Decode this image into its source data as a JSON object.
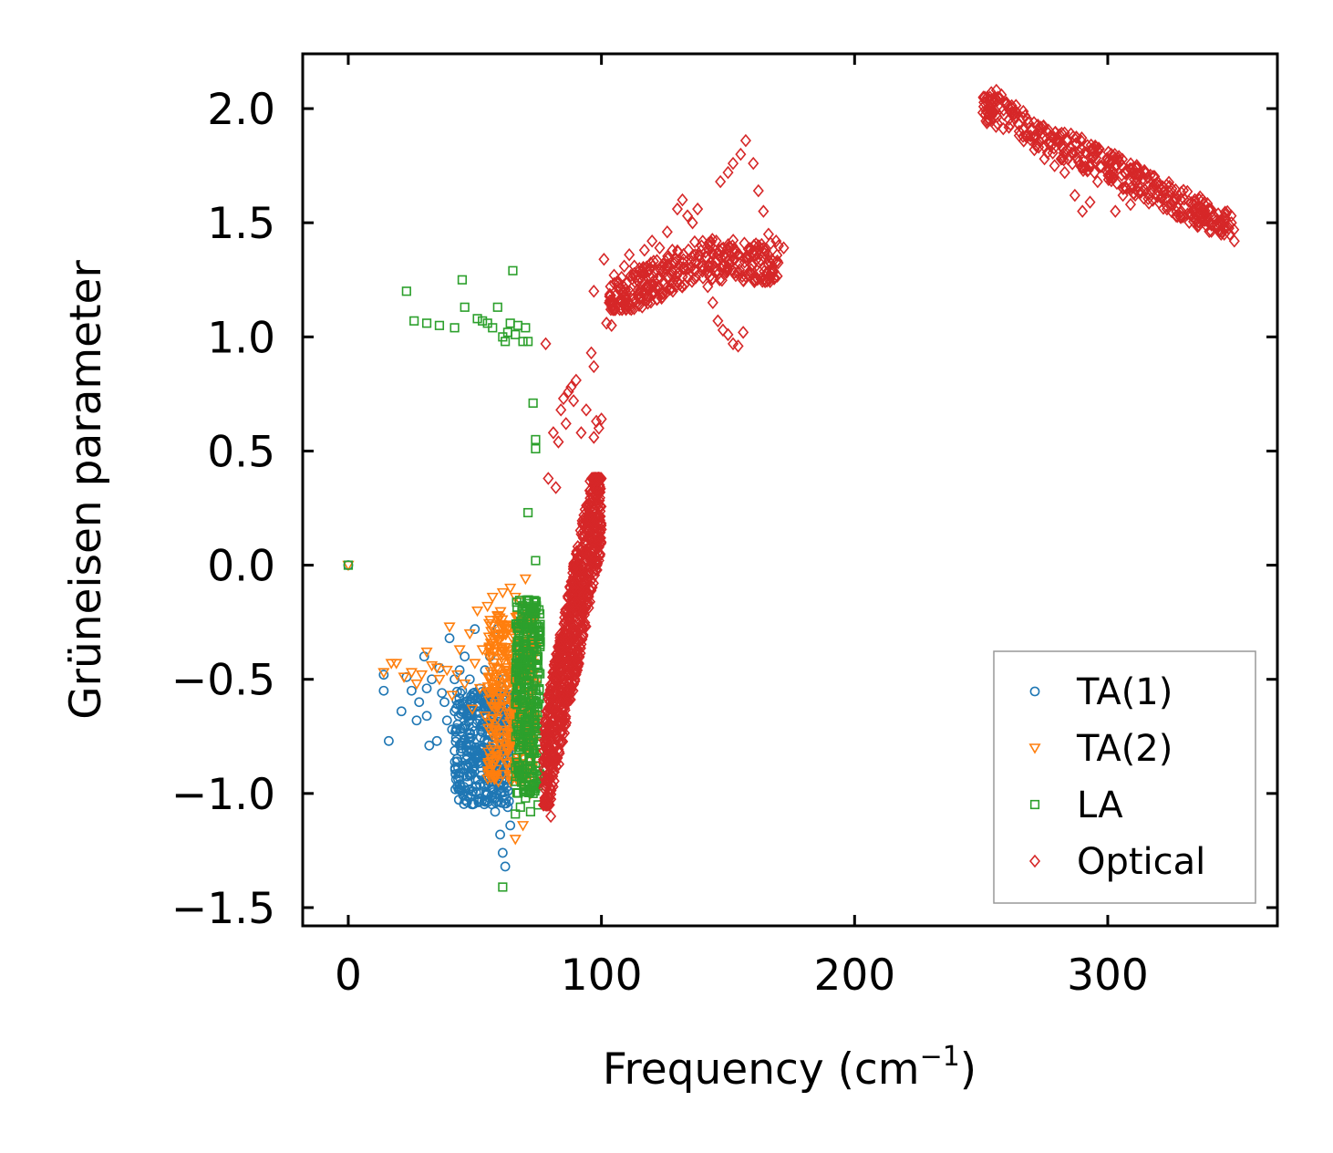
{
  "chart_data": {
    "type": "scatter",
    "title": "",
    "xlabel": "Frequency (cm",
    "xlabel_sup": "−1",
    "xlabel_close": ")",
    "ylabel": "Grüneisen parameter",
    "xlim": [
      -18,
      367
    ],
    "ylim": [
      -1.58,
      2.24
    ],
    "x_ticks": [
      0,
      100,
      200,
      300
    ],
    "x_tick_labels": [
      "0",
      "100",
      "200",
      "300"
    ],
    "y_ticks": [
      -1.5,
      -1.0,
      -0.5,
      0.0,
      0.5,
      1.0,
      1.5,
      2.0
    ],
    "y_tick_labels": [
      "−1.5",
      "−1.0",
      "−0.5",
      "0.0",
      "0.5",
      "1.0",
      "1.5",
      "2.0"
    ],
    "grid": false,
    "legend_position": "bottom-right",
    "series": [
      {
        "name": "TA(1)",
        "marker": "circle",
        "color": "#1f77b4",
        "points": [
          [
            0,
            0
          ],
          [
            14,
            -0.48
          ],
          [
            14,
            -0.55
          ],
          [
            16,
            -0.77
          ],
          [
            21,
            -0.64
          ],
          [
            23,
            -0.49
          ],
          [
            25,
            -0.55
          ],
          [
            27,
            -0.68
          ],
          [
            28,
            -0.6
          ],
          [
            30,
            -0.4
          ],
          [
            31,
            -0.54
          ],
          [
            31,
            -0.66
          ],
          [
            32,
            -0.79
          ],
          [
            33,
            -0.5
          ],
          [
            35,
            -0.77
          ],
          [
            36,
            -0.45
          ],
          [
            37,
            -0.56
          ],
          [
            38,
            -0.6
          ],
          [
            39,
            -0.68
          ],
          [
            40,
            -0.32
          ],
          [
            41,
            -0.72
          ],
          [
            42,
            -0.5
          ],
          [
            42,
            -0.64
          ],
          [
            43,
            -0.86
          ],
          [
            44,
            -0.46
          ],
          [
            45,
            -0.55
          ],
          [
            46,
            -0.4
          ],
          [
            47,
            -0.66
          ],
          [
            48,
            -0.5
          ],
          [
            48,
            -0.74
          ],
          [
            49,
            -0.58
          ],
          [
            50,
            -0.28
          ],
          [
            50,
            -0.84
          ],
          [
            51,
            -0.62
          ],
          [
            52,
            -0.54
          ],
          [
            52,
            -0.96
          ],
          [
            53,
            -0.7
          ],
          [
            54,
            -0.46
          ],
          [
            55,
            -0.78
          ],
          [
            55,
            -0.6
          ],
          [
            56,
            -0.88
          ],
          [
            56,
            -0.4
          ],
          [
            57,
            -0.66
          ],
          [
            57,
            -0.98
          ],
          [
            58,
            -0.56
          ],
          [
            58,
            -1.08
          ],
          [
            59,
            -0.28
          ],
          [
            59,
            -0.74
          ],
          [
            60,
            -0.82
          ],
          [
            60,
            -1.18
          ],
          [
            61,
            -0.5
          ],
          [
            61,
            -1.26
          ],
          [
            62,
            -0.94
          ],
          [
            62,
            -1.32
          ],
          [
            63,
            -1.06
          ],
          [
            63,
            -0.68
          ],
          [
            64,
            -1.14
          ],
          [
            64,
            -0.86
          ],
          [
            65,
            -0.58
          ]
        ],
        "clusters": [
          {
            "xmin": 42,
            "xmax": 64,
            "ymin": -1.05,
            "ymax": -0.55,
            "n": 380
          }
        ]
      },
      {
        "name": "TA(2)",
        "marker": "triangle-down",
        "color": "#ff7f0e",
        "points": [
          [
            0,
            0
          ],
          [
            14,
            -0.47
          ],
          [
            17,
            -0.43
          ],
          [
            19,
            -0.43
          ],
          [
            22,
            -0.49
          ],
          [
            25,
            -0.47
          ],
          [
            27,
            -0.52
          ],
          [
            29,
            -0.48
          ],
          [
            31,
            -0.38
          ],
          [
            33,
            -0.44
          ],
          [
            35,
            -0.45
          ],
          [
            36,
            -0.5
          ],
          [
            39,
            -0.46
          ],
          [
            40,
            -0.27
          ],
          [
            41,
            -0.57
          ],
          [
            43,
            -0.48
          ],
          [
            44,
            -0.37
          ],
          [
            46,
            -0.52
          ],
          [
            48,
            -0.3
          ],
          [
            49,
            -0.63
          ],
          [
            50,
            -0.43
          ],
          [
            51,
            -0.2
          ],
          [
            52,
            -0.54
          ],
          [
            53,
            -0.37
          ],
          [
            54,
            -0.66
          ],
          [
            55,
            -0.18
          ],
          [
            56,
            -0.49
          ],
          [
            57,
            -0.14
          ],
          [
            58,
            -0.31
          ],
          [
            58,
            -0.72
          ],
          [
            59,
            -0.24
          ],
          [
            60,
            -0.58
          ],
          [
            61,
            -0.12
          ],
          [
            62,
            -0.36
          ],
          [
            63,
            -0.82
          ],
          [
            64,
            -0.1
          ],
          [
            65,
            -0.6
          ],
          [
            66,
            -0.14
          ],
          [
            66,
            -1.2
          ],
          [
            67,
            -0.92
          ],
          [
            68,
            -0.16
          ],
          [
            69,
            -1.14
          ],
          [
            70,
            -0.06
          ],
          [
            71,
            -0.4
          ],
          [
            72,
            -1.0
          ],
          [
            73,
            -0.22
          ],
          [
            74,
            -0.74
          ]
        ],
        "clusters": [
          {
            "xmin": 55,
            "xmax": 74,
            "ymin": -0.95,
            "ymax": -0.2,
            "n": 380
          }
        ]
      },
      {
        "name": "LA",
        "marker": "square",
        "color": "#2ca02c",
        "points": [
          [
            0,
            0
          ],
          [
            23,
            1.2
          ],
          [
            26,
            1.07
          ],
          [
            31,
            1.06
          ],
          [
            36,
            1.05
          ],
          [
            42,
            1.04
          ],
          [
            45,
            1.25
          ],
          [
            46,
            1.13
          ],
          [
            51,
            1.08
          ],
          [
            53,
            1.07
          ],
          [
            55,
            1.06
          ],
          [
            57,
            1.04
          ],
          [
            59,
            1.13
          ],
          [
            61,
            1.0
          ],
          [
            61,
            -1.41
          ],
          [
            62,
            0.98
          ],
          [
            63,
            1.02
          ],
          [
            64,
            1.06
          ],
          [
            65,
            1.29
          ],
          [
            66,
            1.01
          ],
          [
            67,
            1.05
          ],
          [
            69,
            0.98
          ],
          [
            70,
            1.04
          ],
          [
            71,
            0.23
          ],
          [
            71,
            0.98
          ],
          [
            73,
            0.71
          ],
          [
            74,
            0.55
          ],
          [
            74,
            0.51
          ],
          [
            74,
            0.02
          ],
          [
            75,
            -0.27
          ],
          [
            75,
            -1.05
          ],
          [
            73,
            -1.0
          ],
          [
            72,
            -1.08
          ],
          [
            70,
            -1.02
          ],
          [
            68,
            -1.06
          ],
          [
            66,
            -1.09
          ]
        ],
        "clusters": [
          {
            "xmin": 66,
            "xmax": 76,
            "ymin": -1.0,
            "ymax": -0.15,
            "n": 320
          }
        ]
      },
      {
        "name": "Optical",
        "marker": "diamond",
        "color": "#d62728",
        "points": [
          [
            78,
            0.97
          ],
          [
            79,
            0.38
          ],
          [
            80,
            -1.1
          ],
          [
            81,
            0.58
          ],
          [
            82,
            0.34
          ],
          [
            83,
            0.54
          ],
          [
            84,
            0.68
          ],
          [
            85,
            0.73
          ],
          [
            86,
            0.62
          ],
          [
            87,
            0.76
          ],
          [
            88,
            0.78
          ],
          [
            89,
            0.72
          ],
          [
            90,
            0.81
          ],
          [
            90,
            -0.18
          ],
          [
            92,
            0.58
          ],
          [
            94,
            0.68
          ],
          [
            96,
            0.93
          ],
          [
            97,
            0.87
          ],
          [
            98,
            0.63
          ],
          [
            99,
            0.6
          ],
          [
            100,
            0.64
          ],
          [
            97,
            0.56
          ],
          [
            97,
            1.2
          ],
          [
            101,
            1.34
          ],
          [
            102,
            1.06
          ],
          [
            104,
            1.05
          ],
          [
            105,
            1.27
          ],
          [
            108,
            1.15
          ],
          [
            109,
            1.31
          ],
          [
            110,
            1.19
          ],
          [
            111,
            1.36
          ],
          [
            113,
            1.31
          ],
          [
            115,
            1.3
          ],
          [
            117,
            1.38
          ],
          [
            120,
            1.42
          ],
          [
            123,
            1.39
          ],
          [
            126,
            1.46
          ],
          [
            128,
            1.38
          ],
          [
            130,
            1.56
          ],
          [
            132,
            1.6
          ],
          [
            134,
            1.53
          ],
          [
            136,
            1.5
          ],
          [
            138,
            1.56
          ],
          [
            140,
            1.31
          ],
          [
            142,
            1.22
          ],
          [
            144,
            1.15
          ],
          [
            146,
            1.07
          ],
          [
            148,
            1.03
          ],
          [
            150,
            1.01
          ],
          [
            152,
            0.97
          ],
          [
            154,
            0.96
          ],
          [
            156,
            1.02
          ],
          [
            147,
            1.68
          ],
          [
            150,
            1.72
          ],
          [
            152,
            1.76
          ],
          [
            155,
            1.8
          ],
          [
            157,
            1.86
          ],
          [
            160,
            1.76
          ],
          [
            162,
            1.64
          ],
          [
            164,
            1.55
          ],
          [
            166,
            1.45
          ],
          [
            169,
            1.42
          ],
          [
            172,
            1.39
          ],
          [
            252,
            2.03
          ],
          [
            254,
            2.07
          ],
          [
            256,
            2.08
          ],
          [
            258,
            2.06
          ],
          [
            260,
            2.02
          ],
          [
            262,
            1.98
          ],
          [
            265,
            1.93
          ],
          [
            268,
            1.88
          ],
          [
            271,
            1.82
          ],
          [
            275,
            1.78
          ],
          [
            279,
            1.75
          ],
          [
            283,
            1.72
          ],
          [
            287,
            1.62
          ],
          [
            290,
            1.55
          ],
          [
            293,
            1.59
          ],
          [
            296,
            1.68
          ],
          [
            300,
            1.72
          ],
          [
            303,
            1.55
          ],
          [
            306,
            1.62
          ],
          [
            309,
            1.58
          ],
          [
            312,
            1.66
          ],
          [
            315,
            1.72
          ],
          [
            318,
            1.66
          ],
          [
            321,
            1.61
          ],
          [
            325,
            1.58
          ],
          [
            329,
            1.55
          ],
          [
            333,
            1.53
          ],
          [
            337,
            1.52
          ],
          [
            341,
            1.49
          ],
          [
            345,
            1.46
          ],
          [
            350,
            1.42
          ]
        ],
        "clusters": [
          {
            "xmin": 77,
            "xmax": 100,
            "ymin": -1.05,
            "ymax": 0.38,
            "n": 820,
            "diag": true
          },
          {
            "xmin": 103,
            "xmax": 170,
            "ymin": 1.12,
            "ymax": 1.55,
            "n": 340,
            "band": "low"
          },
          {
            "xmin": 250,
            "xmax": 350,
            "ymin": 1.45,
            "ymax": 2.05,
            "n": 380,
            "band": "high"
          }
        ]
      }
    ]
  }
}
